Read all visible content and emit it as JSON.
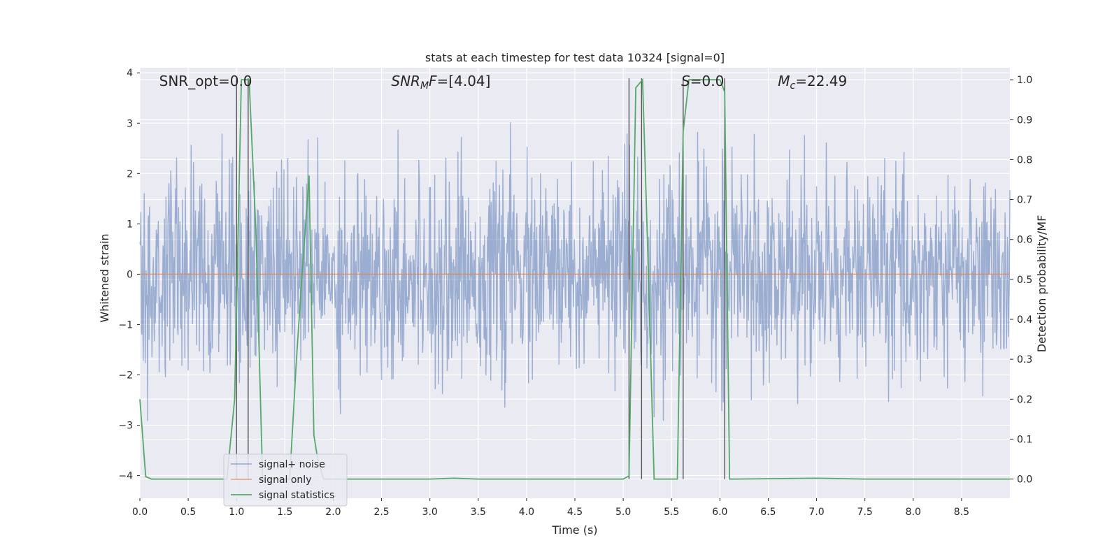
{
  "chart_data": {
    "type": "line",
    "title": "stats at each timestep for test data 10324 [signal=0]",
    "xlabel": "Time (s)",
    "ylabel": "Whitened strain",
    "y2label": "Detection probability/MF",
    "xlim": [
      0.0,
      9.0
    ],
    "ylim": [
      -4.45,
      4.1
    ],
    "y2lim": [
      -0.048,
      1.03
    ],
    "x_ticks": [
      "0.0",
      "0.5",
      "1.0",
      "1.5",
      "2.0",
      "2.5",
      "3.0",
      "3.5",
      "4.0",
      "4.5",
      "5.0",
      "5.5",
      "6.0",
      "6.5",
      "7.0",
      "7.5",
      "8.0",
      "8.5"
    ],
    "y_ticks": [
      "4",
      "3",
      "2",
      "1",
      "0",
      "−1",
      "−2",
      "−3",
      "−4"
    ],
    "y2_ticks": [
      "1.0",
      "0.9",
      "0.8",
      "0.7",
      "0.6",
      "0.5",
      "0.4",
      "0.3",
      "0.2",
      "0.1",
      "0.0"
    ],
    "grid": true,
    "legend_position": "lower-left",
    "annotations": [
      {
        "label": "SNR_opt=0.0",
        "x": 0.2
      },
      {
        "label": "SNR_MF=[4.04]",
        "x": 2.6
      },
      {
        "label": "S=0.0",
        "x": 5.6
      },
      {
        "label": "M_c=22.49",
        "x": 6.6
      }
    ],
    "series": [
      {
        "name": "signal+ noise",
        "color": "#4c72b0",
        "description_values": "whitened noise, roughly Gaussian between -4 and 4",
        "sample_rate_hz": 200,
        "amplitude_std": 1.0
      },
      {
        "name": "signal only",
        "color": "#dd8452",
        "x": [
          0.0,
          9.0
        ],
        "y": [
          0.0,
          0.0
        ]
      },
      {
        "name": "signal statistics",
        "color": "#55a868",
        "axis": "right",
        "x": [
          0.0,
          0.06,
          0.12,
          0.5,
          0.9,
          0.98,
          1.05,
          1.1,
          1.13,
          1.2,
          1.27,
          1.55,
          1.62,
          1.68,
          1.75,
          1.8,
          1.84,
          1.9,
          2.5,
          3.0,
          3.25,
          3.5,
          4.5,
          5.0,
          5.06,
          5.13,
          5.2,
          5.25,
          5.32,
          5.4,
          5.56,
          5.62,
          5.68,
          5.85,
          6.0,
          6.05,
          6.1,
          6.15,
          7.0,
          7.5,
          8.0,
          9.0
        ],
        "y": [
          0.2,
          0.006,
          0.0,
          0.0,
          0.0,
          0.2,
          1.0,
          1.0,
          1.0,
          0.62,
          0.0,
          0.0,
          0.3,
          0.52,
          0.76,
          0.11,
          0.05,
          0.0,
          0.0,
          0.0,
          0.002,
          0.0,
          0.0,
          0.0,
          0.008,
          0.98,
          1.0,
          0.6,
          0.0,
          0.0,
          0.0,
          0.87,
          1.0,
          1.0,
          1.0,
          0.97,
          0.0,
          0.0,
          0.002,
          0.0,
          0.0,
          0.0
        ]
      }
    ],
    "vertical_markers_x": [
      1.0,
      1.12,
      5.06,
      5.19,
      5.62,
      6.05
    ]
  }
}
